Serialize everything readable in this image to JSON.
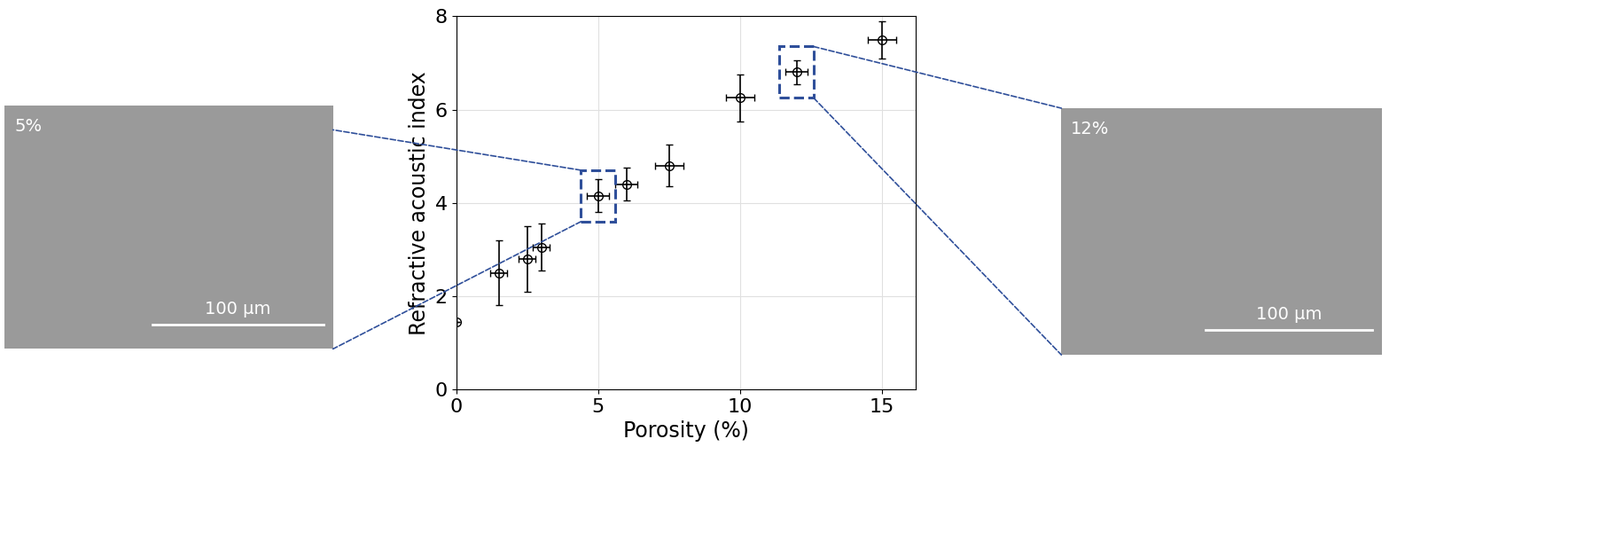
{
  "chart_data": {
    "type": "scatter",
    "x_label": "Porosity (%)",
    "y_label": "Refractive acoustic index",
    "x": [
      0,
      1.5,
      2.5,
      3.0,
      5,
      6,
      7.5,
      10,
      12,
      15
    ],
    "values": [
      1.45,
      2.5,
      2.8,
      3.05,
      4.15,
      4.4,
      4.8,
      6.25,
      6.8,
      7.5
    ],
    "x_error": [
      0,
      0.3,
      0.3,
      0.3,
      0.4,
      0.4,
      0.5,
      0.5,
      0.4,
      0.5
    ],
    "y_error": [
      0,
      0.7,
      0.7,
      0.5,
      0.35,
      0.35,
      0.45,
      0.5,
      0.25,
      0.4
    ],
    "color": "#000000",
    "marker": "o",
    "xlim": [
      0,
      16.2
    ],
    "ylim": [
      0,
      8
    ],
    "xticks": [
      0,
      5,
      10,
      15
    ],
    "yticks": [
      0,
      2,
      4,
      6,
      8
    ],
    "grid": true,
    "insets": [
      {
        "x": 5,
        "label": "5%",
        "scale_bar": "100 µm"
      },
      {
        "x": 12,
        "label": "12%",
        "scale_bar": "100 µm"
      }
    ]
  }
}
